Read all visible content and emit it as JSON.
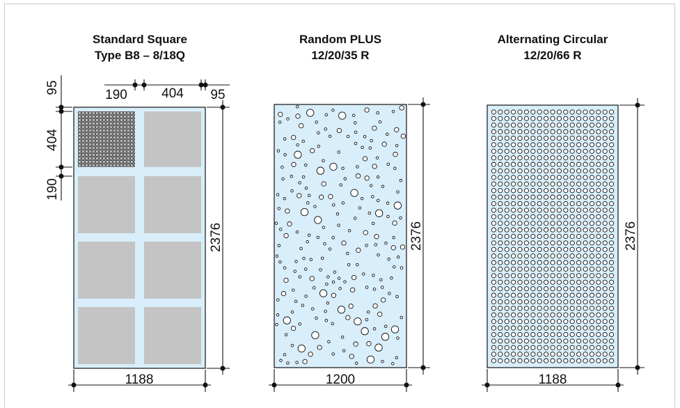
{
  "panels": [
    {
      "id": "standard-square",
      "title_line1": "Standard Square",
      "title_line2": "Type B8 – 8/18Q",
      "dims": {
        "width": "1188",
        "height": "2376",
        "top_left_margin": "190",
        "top_square": "404",
        "top_right_margin": "95",
        "left_top_margin": "95",
        "left_square": "404",
        "left_gap": "190"
      }
    },
    {
      "id": "random-plus",
      "title_line1": "Random PLUS",
      "title_line2": "12/20/35 R",
      "dims": {
        "width": "1200",
        "height": "2376"
      }
    },
    {
      "id": "alternating-circular",
      "title_line1": "Alternating Circular",
      "title_line2": "12/20/66 R",
      "dims": {
        "width": "1188",
        "height": "2376"
      }
    }
  ],
  "colors": {
    "panel_fill": "#d8eefa",
    "square_fill": "#c4c4c4",
    "line": "#111111"
  }
}
